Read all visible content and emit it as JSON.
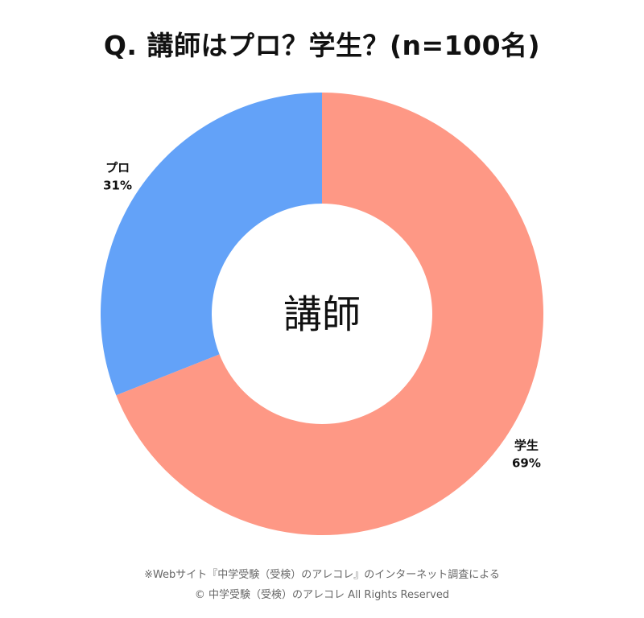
{
  "chart_data": {
    "type": "pie",
    "title": "Q. 講師はプロ？学生？(n=100名)",
    "center_label": "講師",
    "slices": [
      {
        "label": "プロ",
        "value": 31,
        "value_label": "31%",
        "color": "#63a2f8"
      },
      {
        "label": "学生",
        "value": 69,
        "value_label": "69%",
        "color": "#fe9885"
      }
    ]
  },
  "footer": {
    "note": "※Webサイト『中学受験（受検）のアレコレ』のインターネット調査による",
    "copyright": "© 中学受験（受検）のアレコレ All Rights Reserved"
  }
}
